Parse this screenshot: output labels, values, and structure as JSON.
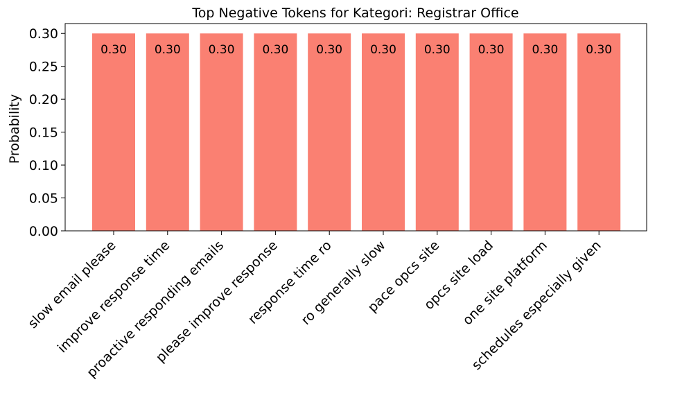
{
  "chart_data": {
    "type": "bar",
    "title": "Top Negative Tokens for Kategori: Registrar Office",
    "xlabel": "",
    "ylabel": "Probability",
    "categories": [
      "slow email please",
      "improve response time",
      "proactive responding emails",
      "please improve response",
      "response time ro",
      "ro generally slow",
      "pace opcs site",
      "opcs site load",
      "one site platform",
      "schedules especially given"
    ],
    "values": [
      0.3,
      0.3,
      0.3,
      0.3,
      0.3,
      0.3,
      0.3,
      0.3,
      0.3,
      0.3
    ],
    "data_labels": [
      "0.30",
      "0.30",
      "0.30",
      "0.30",
      "0.30",
      "0.30",
      "0.30",
      "0.30",
      "0.30",
      "0.30"
    ],
    "ylim": [
      0,
      0.315
    ],
    "yticks": [
      "0.00",
      "0.05",
      "0.10",
      "0.15",
      "0.20",
      "0.25",
      "0.30"
    ],
    "bar_color": "#fa8072",
    "grid": false,
    "legend": "none"
  }
}
